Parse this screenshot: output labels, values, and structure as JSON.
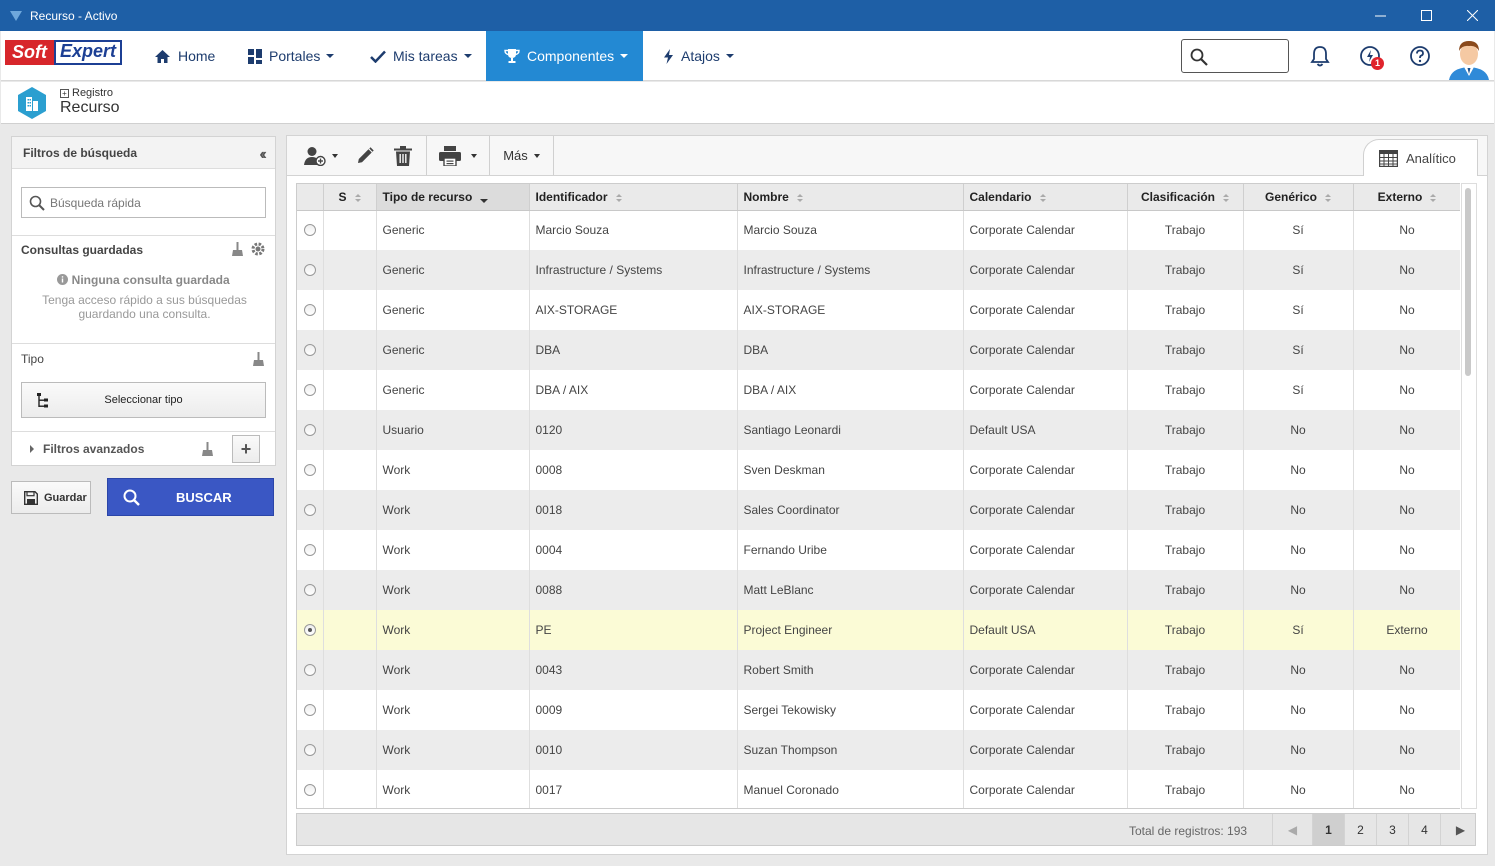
{
  "window": {
    "title": "Recurso - Activo"
  },
  "brand": {
    "soft": "Soft",
    "expert": "Expert"
  },
  "nav": {
    "items": [
      {
        "label": "Home",
        "icon": "home-icon",
        "dropdown": false
      },
      {
        "label": "Portales",
        "icon": "grid-icon",
        "dropdown": true
      },
      {
        "label": "Mis tareas",
        "icon": "check-icon",
        "dropdown": true
      },
      {
        "label": "Componentes",
        "icon": "trophy-icon",
        "dropdown": true,
        "active": true
      },
      {
        "label": "Atajos",
        "icon": "bolt-icon",
        "dropdown": true
      }
    ],
    "search_placeholder": "",
    "notification_count": "1"
  },
  "breadcrumb": {
    "parent": "Registro",
    "title": "Recurso"
  },
  "filters": {
    "header": "Filtros de búsqueda",
    "quick_search_placeholder": "Búsqueda rápida",
    "saved_queries_label": "Consultas guardadas",
    "no_query": "Ninguna consulta guardada",
    "no_query_desc": "Tenga acceso rápido a sus búsquedas guardando una consulta.",
    "type_label": "Tipo",
    "select_type": "Seleccionar tipo",
    "advanced": "Filtros avanzados",
    "save": "Guardar",
    "search": "BUSCAR"
  },
  "toolbar": {
    "more": "Más",
    "tab": "Analítico"
  },
  "table": {
    "columns": [
      "",
      "S",
      "Tipo de recurso",
      "Identificador",
      "Nombre",
      "Calendario",
      "Clasificación",
      "Genérico",
      "Externo"
    ],
    "rows": [
      {
        "selected": false,
        "tipo": "Generic",
        "id": "Marcio Souza",
        "nombre": "Marcio Souza",
        "calendario": "Corporate Calendar",
        "clasificacion": "Trabajo",
        "generico": "Sí",
        "externo": "No"
      },
      {
        "selected": false,
        "tipo": "Generic",
        "id": "Infrastructure / Systems",
        "nombre": "Infrastructure / Systems",
        "calendario": "Corporate Calendar",
        "clasificacion": "Trabajo",
        "generico": "Sí",
        "externo": "No"
      },
      {
        "selected": false,
        "tipo": "Generic",
        "id": "AIX-STORAGE",
        "nombre": "AIX-STORAGE",
        "calendario": "Corporate Calendar",
        "clasificacion": "Trabajo",
        "generico": "Sí",
        "externo": "No"
      },
      {
        "selected": false,
        "tipo": "Generic",
        "id": "DBA",
        "nombre": "DBA",
        "calendario": "Corporate Calendar",
        "clasificacion": "Trabajo",
        "generico": "Sí",
        "externo": "No"
      },
      {
        "selected": false,
        "tipo": "Generic",
        "id": "DBA / AIX",
        "nombre": "DBA / AIX",
        "calendario": "Corporate Calendar",
        "clasificacion": "Trabajo",
        "generico": "Sí",
        "externo": "No"
      },
      {
        "selected": false,
        "tipo": "Usuario",
        "id": "0120",
        "nombre": "Santiago Leonardi",
        "calendario": "Default USA",
        "clasificacion": "Trabajo",
        "generico": "No",
        "externo": "No"
      },
      {
        "selected": false,
        "tipo": "Work",
        "id": "0008",
        "nombre": "Sven Deskman",
        "calendario": "Corporate Calendar",
        "clasificacion": "Trabajo",
        "generico": "No",
        "externo": "No"
      },
      {
        "selected": false,
        "tipo": "Work",
        "id": "0018",
        "nombre": "Sales Coordinator",
        "calendario": "Corporate Calendar",
        "clasificacion": "Trabajo",
        "generico": "No",
        "externo": "No"
      },
      {
        "selected": false,
        "tipo": "Work",
        "id": "0004",
        "nombre": "Fernando Uribe",
        "calendario": "Corporate Calendar",
        "clasificacion": "Trabajo",
        "generico": "No",
        "externo": "No"
      },
      {
        "selected": false,
        "tipo": "Work",
        "id": "0088",
        "nombre": "Matt LeBlanc",
        "calendario": "Corporate Calendar",
        "clasificacion": "Trabajo",
        "generico": "No",
        "externo": "No"
      },
      {
        "selected": true,
        "tipo": "Work",
        "id": "PE",
        "nombre": "Project Engineer",
        "calendario": "Default USA",
        "clasificacion": "Trabajo",
        "generico": "Sí",
        "externo": "Externo"
      },
      {
        "selected": false,
        "tipo": "Work",
        "id": "0043",
        "nombre": "Robert Smith",
        "calendario": "Corporate Calendar",
        "clasificacion": "Trabajo",
        "generico": "No",
        "externo": "No"
      },
      {
        "selected": false,
        "tipo": "Work",
        "id": "0009",
        "nombre": "Sergei Tekowisky",
        "calendario": "Corporate Calendar",
        "clasificacion": "Trabajo",
        "generico": "No",
        "externo": "No"
      },
      {
        "selected": false,
        "tipo": "Work",
        "id": "0010",
        "nombre": "Suzan Thompson",
        "calendario": "Corporate Calendar",
        "clasificacion": "Trabajo",
        "generico": "No",
        "externo": "No"
      },
      {
        "selected": false,
        "tipo": "Work",
        "id": "0017",
        "nombre": "Manuel Coronado",
        "calendario": "Corporate Calendar",
        "clasificacion": "Trabajo",
        "generico": "No",
        "externo": "No"
      }
    ]
  },
  "pagination": {
    "total_label": "Total de registros: 193",
    "pages": [
      "1",
      "2",
      "3",
      "4"
    ],
    "current": "1"
  },
  "colors": {
    "titlebar": "#1e5fa6",
    "nav_active": "#2389d3",
    "search_button": "#3a57c4",
    "selected_row": "#fbfbd6"
  }
}
